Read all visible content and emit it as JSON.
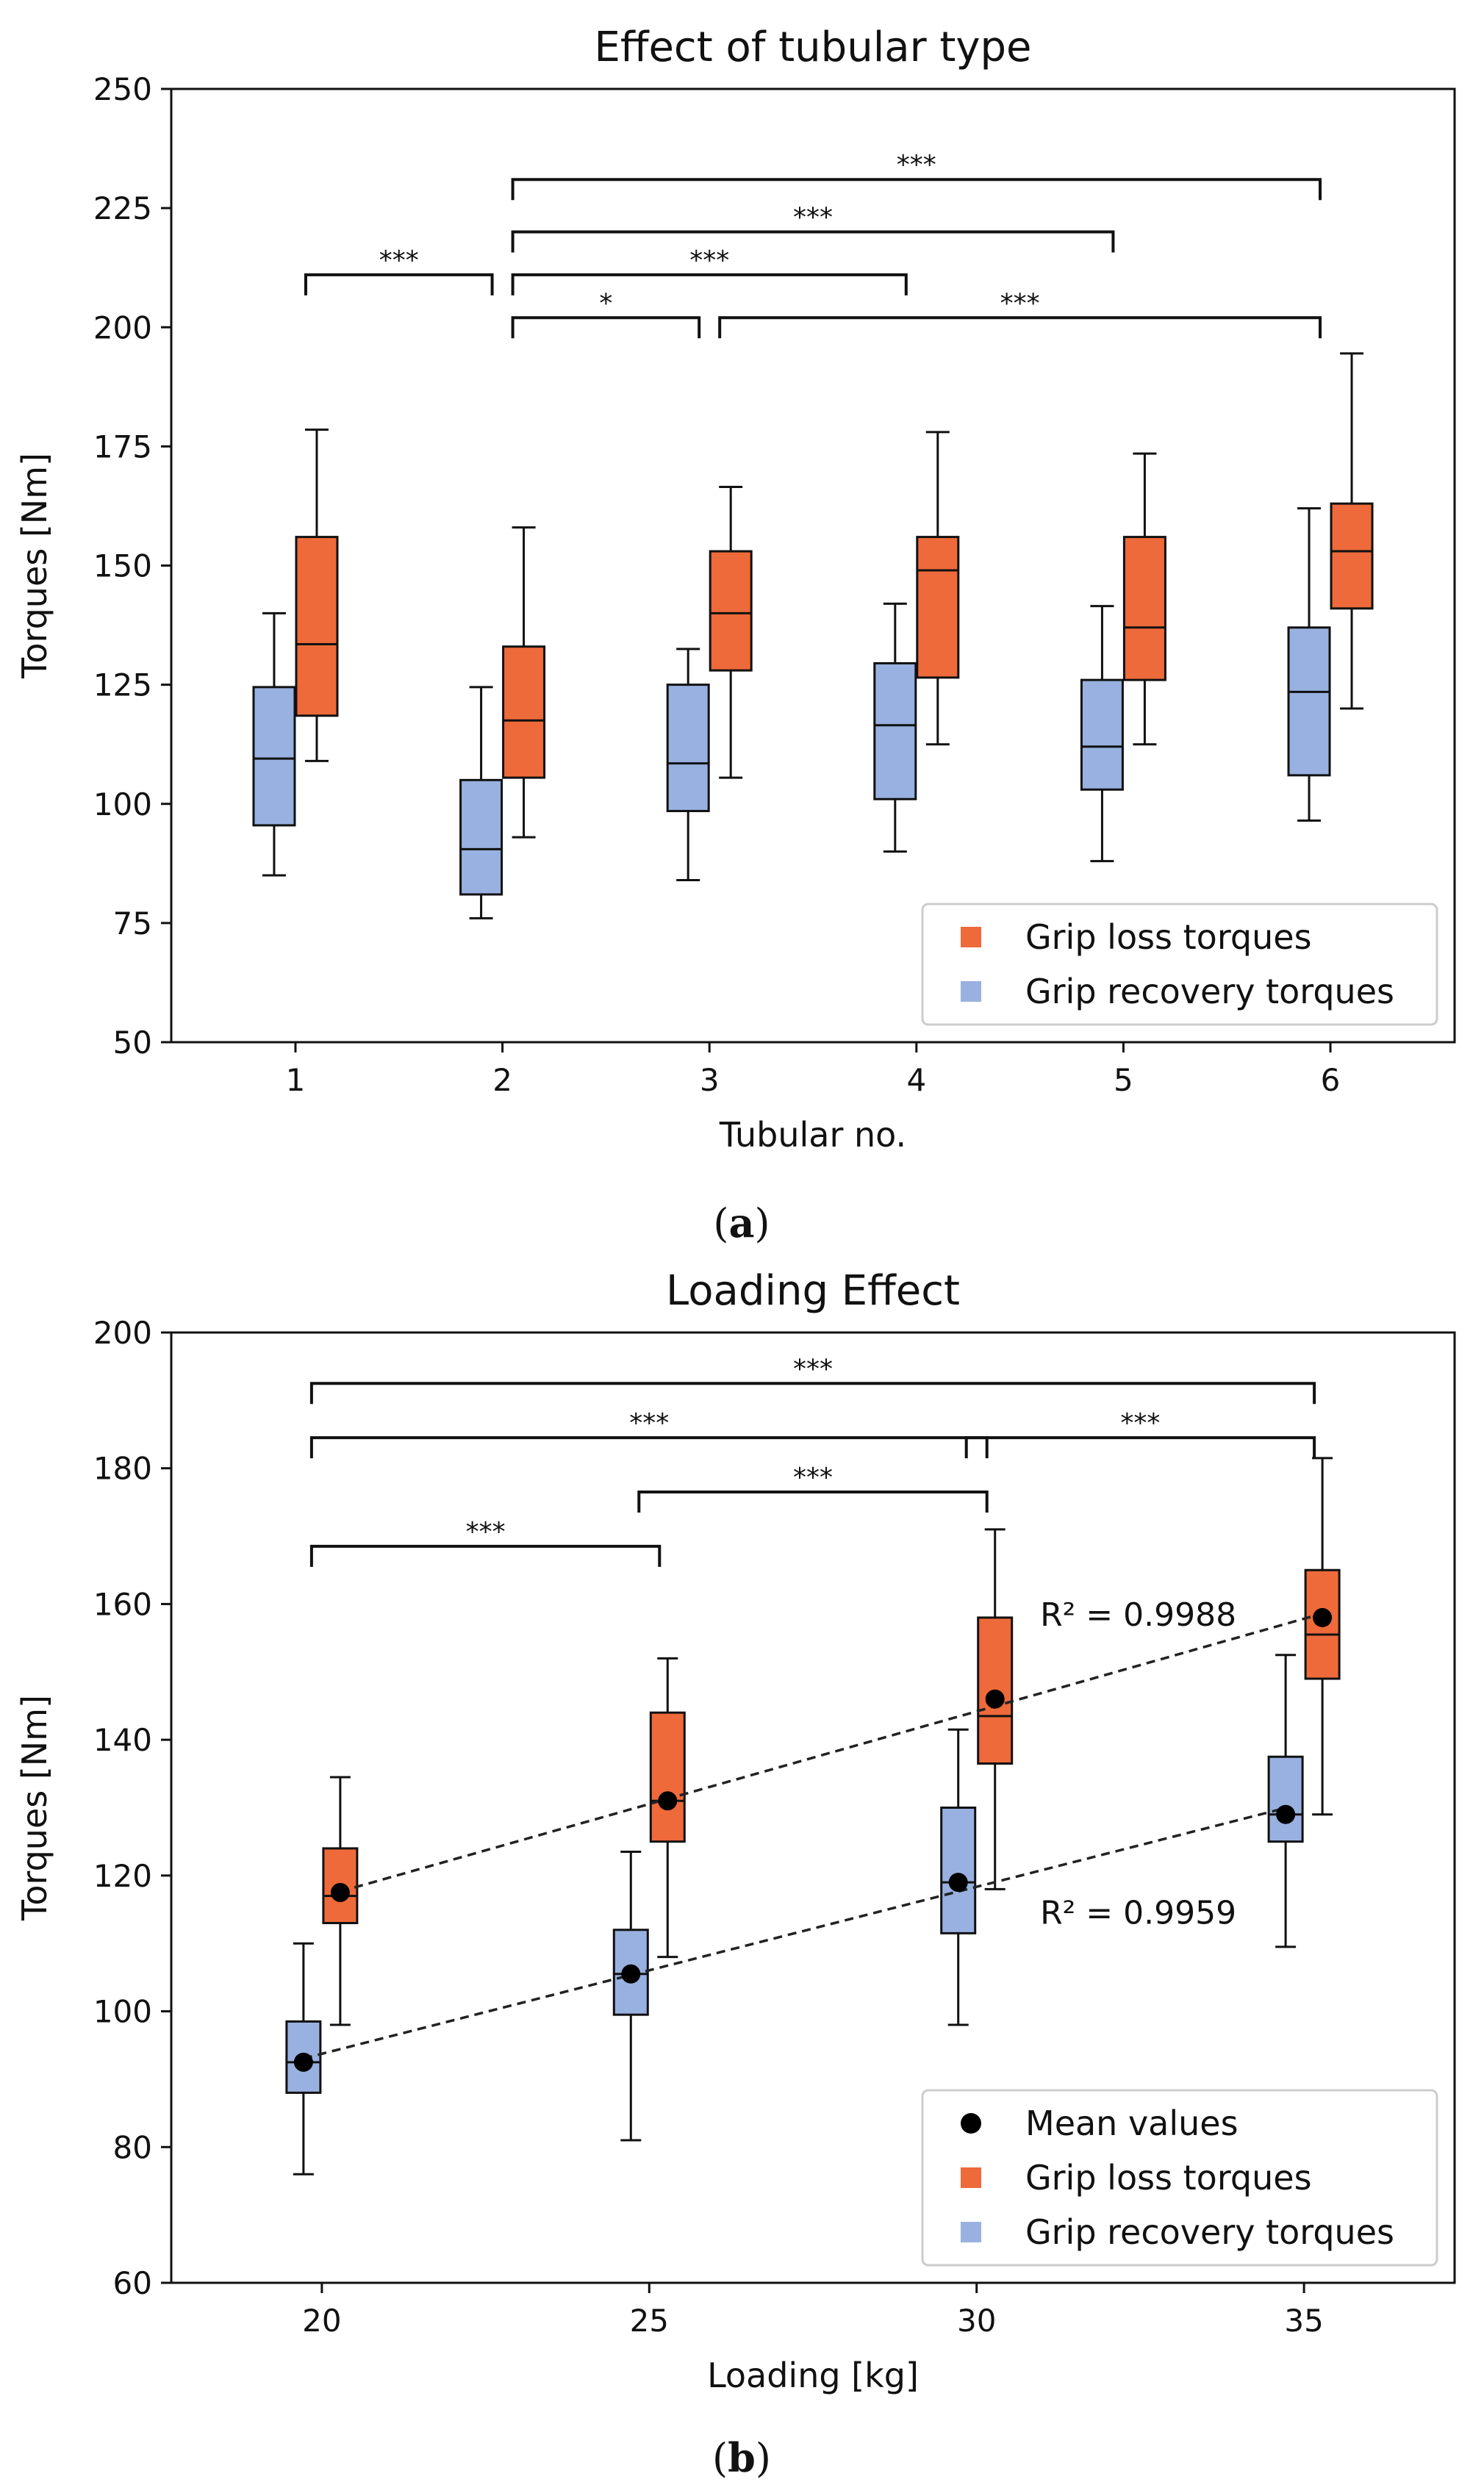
{
  "colors": {
    "loss": "#ee6a3a",
    "recovery": "#98b1e0",
    "mean": "#000000",
    "axis": "#111111"
  },
  "captions": {
    "a_open": "(",
    "a_letter": "a",
    "a_close": ")",
    "b_open": "(",
    "b_letter": "b",
    "b_close": ")"
  },
  "chart_data": [
    {
      "type": "box",
      "title": "Effect of tubular type",
      "xlabel": "Tubular no.",
      "ylabel": "Torques [Nm]",
      "categories": [
        "1",
        "2",
        "3",
        "4",
        "5",
        "6"
      ],
      "xlim": [
        0.4,
        6.6
      ],
      "ylim": [
        50,
        250
      ],
      "yticks": [
        50,
        75,
        100,
        125,
        150,
        175,
        200,
        225,
        250
      ],
      "legend_position": "lower-right",
      "legend": [
        "Grip loss torques",
        "Grip recovery torques"
      ],
      "series": [
        {
          "name": "Grip recovery torques",
          "color_key": "recovery",
          "boxes": [
            {
              "min": 85,
              "q1": 95.5,
              "median": 109.5,
              "q3": 124.5,
              "max": 140
            },
            {
              "min": 76,
              "q1": 81,
              "median": 90.5,
              "q3": 105,
              "max": 124.5
            },
            {
              "min": 84,
              "q1": 98.5,
              "median": 108.5,
              "q3": 125,
              "max": 132.5
            },
            {
              "min": 90,
              "q1": 101,
              "median": 116.5,
              "q3": 129.5,
              "max": 142
            },
            {
              "min": 88,
              "q1": 103,
              "median": 112,
              "q3": 126,
              "max": 141.5
            },
            {
              "min": 96.5,
              "q1": 106,
              "median": 123.5,
              "q3": 137,
              "max": 162
            }
          ]
        },
        {
          "name": "Grip loss torques",
          "color_key": "loss",
          "boxes": [
            {
              "min": 109,
              "q1": 118.5,
              "median": 133.5,
              "q3": 156,
              "max": 178.5
            },
            {
              "min": 93,
              "q1": 105.5,
              "median": 117.5,
              "q3": 133,
              "max": 158
            },
            {
              "min": 105.5,
              "q1": 128,
              "median": 140,
              "q3": 153,
              "max": 166.5
            },
            {
              "min": 112.5,
              "q1": 126.5,
              "median": 149,
              "q3": 156,
              "max": 178
            },
            {
              "min": 112.5,
              "q1": 126,
              "median": 137,
              "q3": 156,
              "max": 173.5
            },
            {
              "min": 120,
              "q1": 141,
              "median": 153,
              "q3": 163,
              "max": 194.5
            }
          ]
        }
      ],
      "significance": [
        {
          "from": 1,
          "to": 2,
          "level": 211,
          "label": "***"
        },
        {
          "from": 2,
          "to": 3,
          "level": 202,
          "label": "*"
        },
        {
          "from": 2,
          "to": 4,
          "level": 211,
          "label": "***"
        },
        {
          "from": 2,
          "to": 5,
          "level": 220,
          "label": "***"
        },
        {
          "from": 2,
          "to": 6,
          "level": 231,
          "label": "***"
        },
        {
          "from": 3,
          "to": 6,
          "level": 202,
          "label": "***"
        }
      ]
    },
    {
      "type": "box",
      "title": "Loading Effect",
      "xlabel": "Loading [kg]",
      "ylabel": "Torques [Nm]",
      "categories": [
        "20",
        "25",
        "30",
        "35"
      ],
      "x": [
        20,
        25,
        30,
        35
      ],
      "xlim": [
        17.7,
        37.3
      ],
      "ylim": [
        60,
        200
      ],
      "yticks": [
        60,
        80,
        100,
        120,
        140,
        160,
        180,
        200
      ],
      "legend_position": "lower-right",
      "legend": [
        "Mean values",
        "Grip loss torques",
        "Grip recovery torques"
      ],
      "series": [
        {
          "name": "Grip recovery torques",
          "color_key": "recovery",
          "boxes": [
            {
              "min": 76,
              "q1": 88,
              "median": 92.5,
              "q3": 98.5,
              "max": 110,
              "mean": 92.5
            },
            {
              "min": 81,
              "q1": 99.5,
              "median": 105.5,
              "q3": 112,
              "max": 123.5,
              "mean": 105.5
            },
            {
              "min": 98,
              "q1": 111.5,
              "median": 119,
              "q3": 130,
              "max": 141.5,
              "mean": 119
            },
            {
              "min": 109.5,
              "q1": 125,
              "median": 129,
              "q3": 137.5,
              "max": 152.5,
              "mean": 129
            }
          ]
        },
        {
          "name": "Grip loss torques",
          "color_key": "loss",
          "boxes": [
            {
              "min": 98,
              "q1": 113,
              "median": 117,
              "q3": 124,
              "max": 134.5,
              "mean": 117.5
            },
            {
              "min": 108,
              "q1": 125,
              "median": 131,
              "q3": 144,
              "max": 152,
              "mean": 131
            },
            {
              "min": 118,
              "q1": 136.5,
              "median": 143.5,
              "q3": 158,
              "max": 171,
              "mean": 146
            },
            {
              "min": 129,
              "q1": 149,
              "median": 155.5,
              "q3": 165,
              "max": 181.5,
              "mean": 158
            }
          ]
        }
      ],
      "trendlines": [
        {
          "series": "Grip loss torques",
          "r2_label": "R² = 0.9988"
        },
        {
          "series": "Grip recovery torques",
          "r2_label": "R² = 0.9959"
        }
      ],
      "significance": [
        {
          "from": 20,
          "to": 25,
          "level": 168.5,
          "label": "***"
        },
        {
          "from": 25,
          "to": 30,
          "level": 176.5,
          "label": "***"
        },
        {
          "from": 20,
          "to": 30,
          "level": 184.5,
          "label": "***"
        },
        {
          "from": 30,
          "to": 35,
          "level": 184.5,
          "label": "***"
        },
        {
          "from": 20,
          "to": 35,
          "level": 192.5,
          "label": "***"
        }
      ]
    }
  ]
}
